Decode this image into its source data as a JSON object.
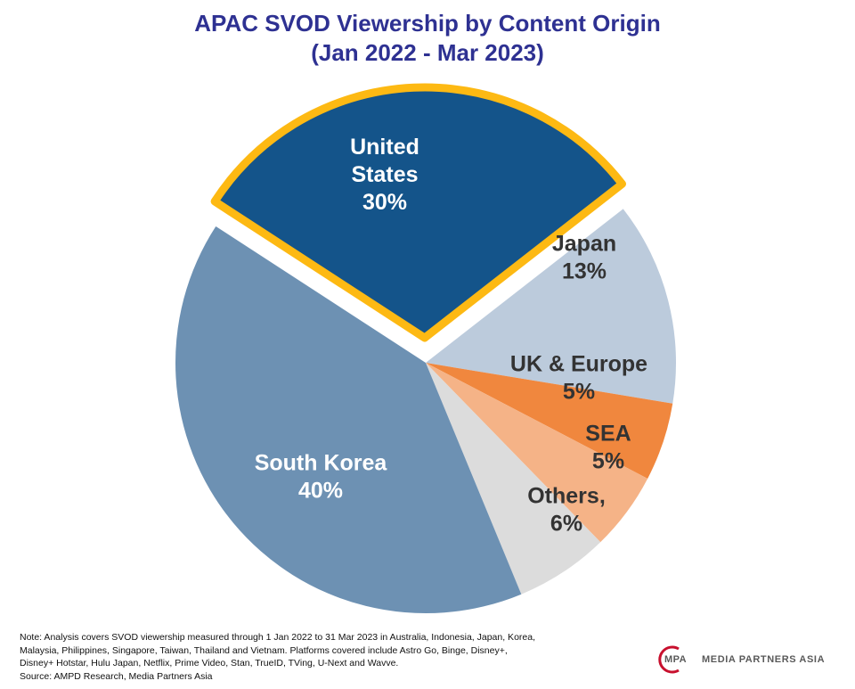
{
  "chart_data": {
    "type": "pie",
    "title": [
      "APAC SVOD Viewership by Content Origin",
      "(Jan 2022 - Mar 2023)"
    ],
    "slices": [
      {
        "label_lines": [
          "United",
          "States",
          "30%"
        ],
        "value": 30,
        "color": "#14548a",
        "label_color": "#ffffff",
        "highlight_color": "#fdb913",
        "exploded": true
      },
      {
        "label_lines": [
          "Japan",
          "13%"
        ],
        "value": 13,
        "color": "#bccbdc",
        "label_color": "#333333"
      },
      {
        "label_lines": [
          "UK & Europe",
          "5%"
        ],
        "value": 5,
        "color": "#f0873e",
        "label_color": "#333333"
      },
      {
        "label_lines": [
          "SEA",
          "5%"
        ],
        "value": 5,
        "color": "#f5b387",
        "label_color": "#333333"
      },
      {
        "label_lines": [
          "Others,",
          "6%"
        ],
        "value": 6,
        "color": "#dcdcdc",
        "label_color": "#333333"
      },
      {
        "label_lines": [
          "South Korea",
          "40%"
        ],
        "value": 40,
        "color": "#6d91b3",
        "label_color": "#ffffff"
      }
    ]
  },
  "note": [
    "Note: Analysis covers SVOD viewership measured through 1 Jan 2022 to 31 Mar 2023 in Australia, Indonesia, Japan, Korea,",
    "Malaysia, Philippines, Singapore, Taiwan, Thailand and Vietnam. Platforms covered include Astro Go, Binge, Disney+,",
    "Disney+ Hotstar, Hulu Japan, Netflix, Prime Video, Stan, TrueID, TVing, U-Next and Wavve.",
    "Source: AMPD Research, Media Partners Asia"
  ],
  "logo": {
    "abbr": "MPA",
    "name": "MEDIA PARTNERS ASIA",
    "color": "#c8102e"
  }
}
